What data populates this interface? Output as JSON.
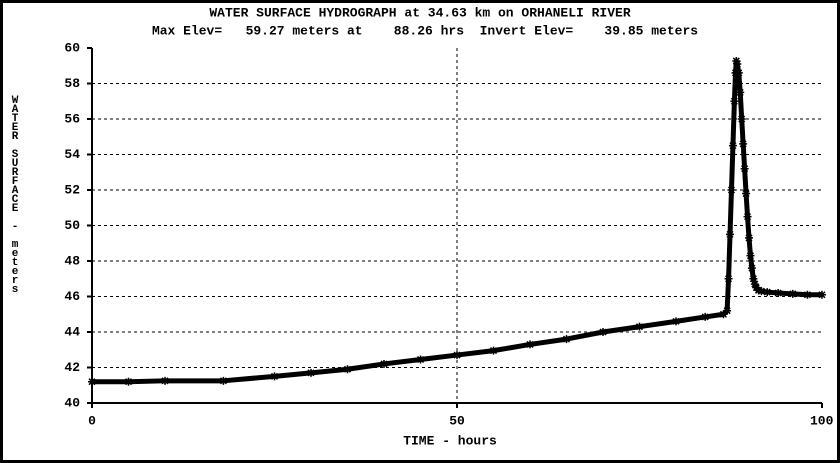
{
  "chart_data": {
    "type": "line",
    "title": "WATER SURFACE HYDROGRAPH at 34.63 km on ORHANELI RIVER",
    "subtitle": "Max Elev=   59.27 meters at    88.26 hrs  Invert Elev=    39.85 meters",
    "x_label": "TIME - hours",
    "y_label": "WATER SURFACE - meters",
    "xlim": [
      0,
      100
    ],
    "xticks": [
      0,
      50,
      100
    ],
    "ylim": [
      40,
      60
    ],
    "yticks": [
      40,
      42,
      44,
      46,
      48,
      50,
      52,
      54,
      56,
      58,
      60
    ],
    "grid": true,
    "series": [
      {
        "name": null,
        "color": "#000000",
        "x": [
          0,
          5,
          10,
          18,
          25,
          30,
          35,
          40,
          45,
          50,
          55,
          60,
          65,
          70,
          75,
          80,
          84,
          86.5,
          87.0,
          87.2,
          87.4,
          87.6,
          87.8,
          88.0,
          88.15,
          88.26,
          88.4,
          88.6,
          88.8,
          89.0,
          89.2,
          89.4,
          89.6,
          89.8,
          90.0,
          90.2,
          90.4,
          90.6,
          90.8,
          91.0,
          91.3,
          91.7,
          92.5,
          94,
          96,
          98,
          100
        ],
        "values": [
          41.2,
          41.2,
          41.25,
          41.25,
          41.5,
          41.7,
          41.9,
          42.2,
          42.45,
          42.7,
          42.95,
          43.3,
          43.6,
          44.0,
          44.3,
          44.6,
          44.85,
          45.0,
          45.2,
          47.0,
          49.5,
          52.0,
          54.5,
          57.0,
          58.6,
          59.27,
          59.1,
          58.6,
          57.5,
          56.0,
          54.6,
          53.2,
          51.8,
          50.5,
          49.3,
          48.3,
          47.6,
          47.0,
          46.7,
          46.5,
          46.35,
          46.3,
          46.25,
          46.2,
          46.15,
          46.1,
          46.1
        ]
      }
    ]
  }
}
